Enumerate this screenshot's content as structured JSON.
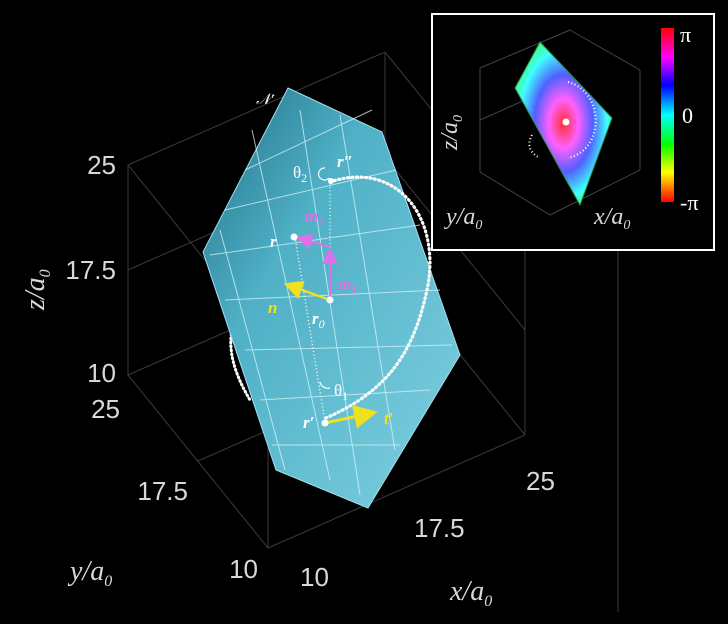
{
  "axes": {
    "z_label": "z/a",
    "z_sub": "0",
    "y_label": "y/a",
    "y_sub": "0",
    "x_label": "x/a",
    "x_sub": "0",
    "z_ticks": [
      "25",
      "17.5",
      "10"
    ],
    "y_ticks": [
      "25",
      "17.5",
      "10"
    ],
    "x_ticks": [
      "10",
      "17.5",
      "25"
    ]
  },
  "plane_label": "𝒩′",
  "annotations": {
    "theta2": "θ",
    "theta2_sub": "2",
    "theta1": "θ",
    "theta1_sub": "1",
    "r_double_prime": "r″",
    "r": "r",
    "r0": "r",
    "r0_sub": "0",
    "r_prime": "r′",
    "m1": "m",
    "m1_sub": "1",
    "m2": "m",
    "m2_sub": "2",
    "n": "n",
    "t_prime": "t′"
  },
  "inset": {
    "z_label": "z/a",
    "z_sub": "0",
    "y_label": "y/a",
    "y_sub": "0",
    "x_label": "x/a",
    "x_sub": "0",
    "colorbar_top": "π",
    "colorbar_mid": "0",
    "colorbar_bottom": "-π"
  },
  "colors": {
    "plane": "#5ab8cc",
    "m_vectors": "#e070e8",
    "n_t_vectors": "#f0e020",
    "background": "#000000"
  }
}
